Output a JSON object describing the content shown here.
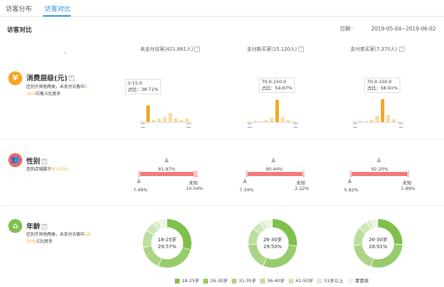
{
  "tabs": {
    "distribution": "访客分布",
    "compare": "访客对比"
  },
  "page_title": "访客对比",
  "date": {
    "label": "日期",
    "range": "2019-05-04~2019-06-02"
  },
  "columns": [
    "未支付访客(421,881人)",
    "支付新买家(15,120人)",
    "支付老买家(7,370人)"
  ],
  "help_mark": "?",
  "consumption": {
    "title": "消费层级(元)",
    "desc_pre": "区别于其他两类，未支付访客中",
    "desc_hl": "0-15.0",
    "desc_post": "访客占比居多",
    "tooltips": [
      {
        "range": "0-15.0",
        "share": "占比：38.71%"
      },
      {
        "range": "70.0-150.0",
        "share": "占比：54.67%"
      },
      {
        "range": "70.0-150.0",
        "share": "占比：58.91%"
      }
    ],
    "bars": [
      [
        0.04,
        0.72,
        0.1,
        0.14,
        0.22,
        0.38,
        0.16,
        0.1,
        0.14
      ],
      [
        0.02,
        0.05,
        0.04,
        0.08,
        0.18,
        0.95,
        0.2,
        0.08,
        0.03
      ],
      [
        0.02,
        0.05,
        0.04,
        0.1,
        0.25,
        0.98,
        0.3,
        0.12,
        0.03
      ]
    ]
  },
  "gender": {
    "title": "性别",
    "desc_pre": "您的店铺属于",
    "desc_hl": "女人333",
    "groups": [
      {
        "female": "81.97%",
        "male": "7.49%",
        "unknown_label": "未知",
        "unknown": "10.54%"
      },
      {
        "female": "90.44%",
        "male": "7.34%",
        "unknown_label": "未知",
        "unknown": "2.22%"
      },
      {
        "female": "92.20%",
        "male": "5.92%",
        "unknown_label": "未知",
        "unknown": "1.89%"
      }
    ]
  },
  "age": {
    "title": "年龄",
    "desc_pre": "区别于其他两类，未支付访客中",
    "desc_hl": "18-30岁",
    "desc_post": "占比居多",
    "donuts": [
      {
        "label": "18-25岁",
        "value": "29.57%",
        "slices": [
          29.57,
          26.5,
          16.5,
          11.5,
          6.5,
          4.0,
          5.4
        ]
      },
      {
        "label": "26-30岁",
        "value": "29.50%",
        "slices": [
          27.0,
          29.5,
          18.0,
          11.0,
          6.0,
          3.5,
          5.0
        ]
      },
      {
        "label": "26-30岁",
        "value": "28.91%",
        "slices": [
          26.0,
          28.91,
          19.0,
          12.0,
          6.5,
          3.5,
          4.09
        ]
      }
    ],
    "legend": [
      "18-25岁",
      "26-30岁",
      "31-35岁",
      "36-40岁",
      "41-50岁",
      "51岁以上",
      "蒙面侠"
    ]
  },
  "colors": {
    "accent": "#2f8ee5",
    "consumption_icon": "#f6a623",
    "gender_icon": "#ef6666",
    "age_icon": "#7fc04d",
    "bar_highlight": "#f5a623",
    "bar_normal": "#fbd9a0",
    "age_palette": [
      "#7fc04d",
      "#97cc6c",
      "#a9d584",
      "#bcdf9d",
      "#cde8b6",
      "#dcefcb",
      "#ebf5e1"
    ]
  },
  "icons": {
    "consumption": "yen-icon",
    "gender": "people-icon",
    "age": "house-icon"
  }
}
